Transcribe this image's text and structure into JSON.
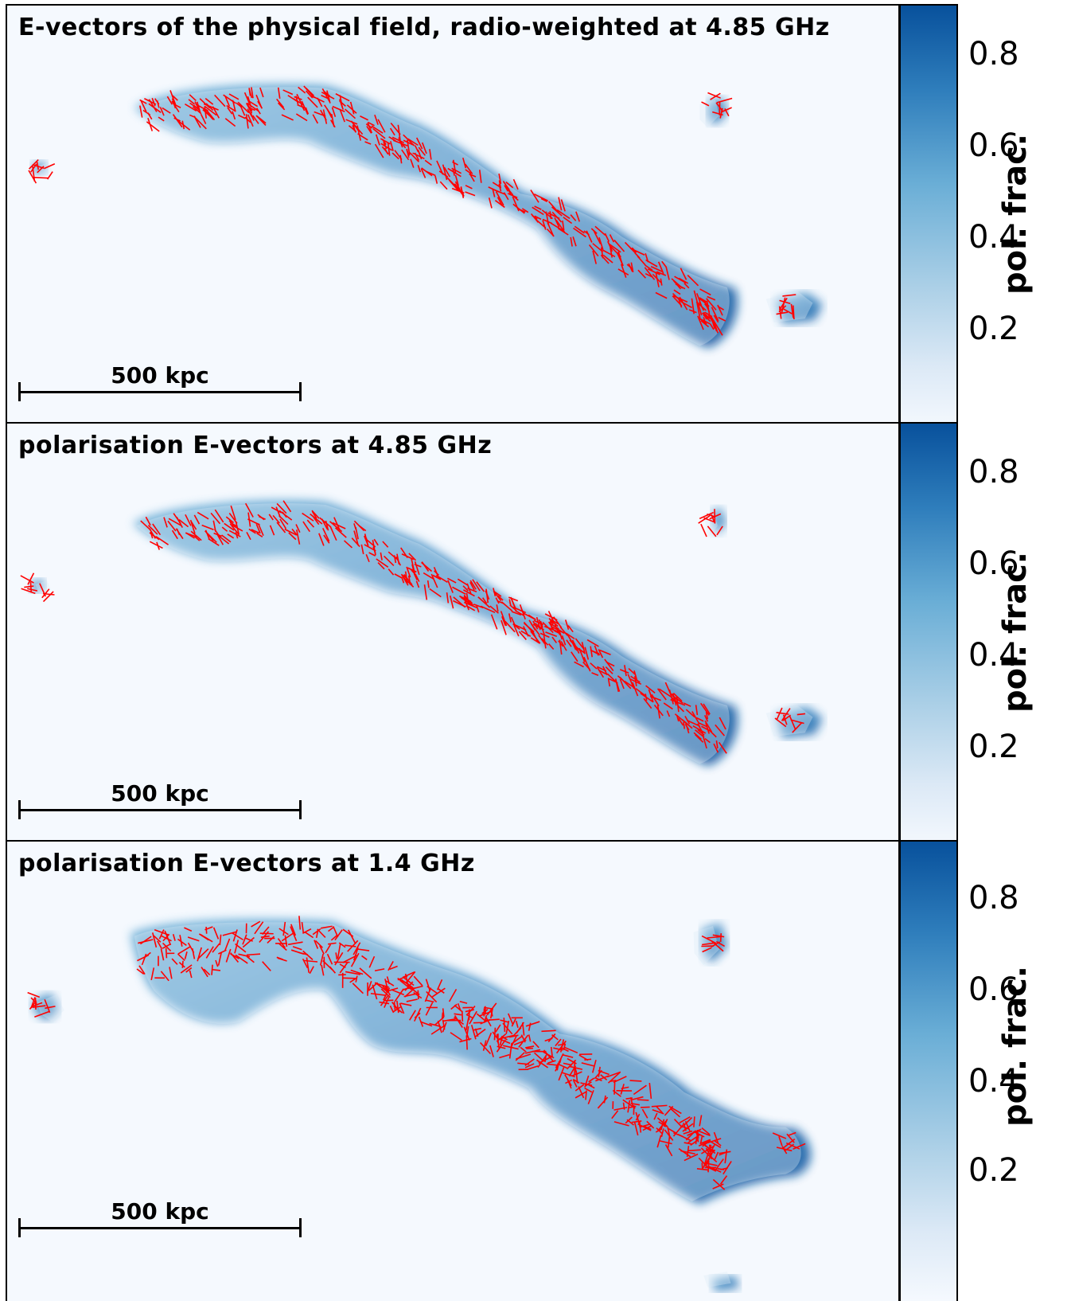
{
  "colorbar": {
    "label": "pol. frac.",
    "ticks": [
      "0.8",
      "0.6",
      "0.4",
      "0.2"
    ],
    "colors": [
      "#f5f9fe",
      "#dce9f6",
      "#6aaed6",
      "#08519c"
    ]
  },
  "vector_color": "#ff0000",
  "panels": [
    {
      "title": "E-vectors of the physical field, radio-weighted at 4.85 GHz",
      "scale_label": "500 kpc"
    },
    {
      "title": "polarisation E-vectors at 4.85 GHz",
      "scale_label": "500 kpc"
    },
    {
      "title": "polarisation E-vectors at 1.4 GHz",
      "scale_label": "500 kpc"
    }
  ]
}
